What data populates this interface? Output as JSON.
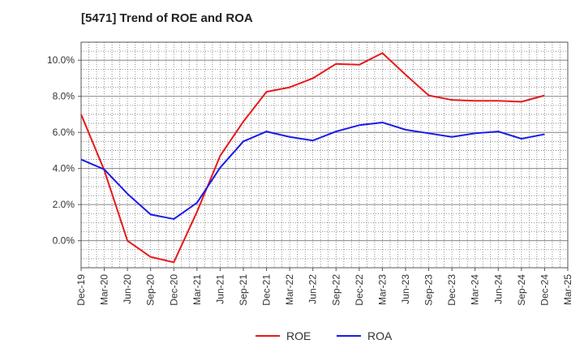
{
  "chart_data": {
    "type": "line",
    "title": "[5471]  Trend of ROE and ROA",
    "xlabel": "",
    "ylabel": "",
    "categories": [
      "Dec-19",
      "Mar-20",
      "Jun-20",
      "Sep-20",
      "Dec-20",
      "Mar-21",
      "Jun-21",
      "Sep-21",
      "Dec-21",
      "Mar-22",
      "Jun-22",
      "Sep-22",
      "Dec-22",
      "Mar-23",
      "Jun-23",
      "Sep-23",
      "Dec-23",
      "Mar-24",
      "Jun-24",
      "Sep-24",
      "Dec-24",
      "Mar-25"
    ],
    "yticks": [
      0,
      2,
      4,
      6,
      8,
      10
    ],
    "ytick_labels": [
      "0.0%",
      "2.0%",
      "4.0%",
      "6.0%",
      "8.0%",
      "10.0%"
    ],
    "ylim": [
      -1.5,
      11
    ],
    "grid": true,
    "legend_position": "bottom-center",
    "series": [
      {
        "name": "ROE",
        "color": "#e8191b",
        "values": [
          7.0,
          3.9,
          0.0,
          -0.9,
          -1.2,
          1.6,
          4.7,
          6.6,
          8.25,
          8.5,
          9.0,
          9.8,
          9.75,
          10.4,
          9.2,
          8.05,
          7.8,
          7.75,
          7.75,
          7.7,
          8.05,
          null
        ]
      },
      {
        "name": "ROA",
        "color": "#1a1aeb",
        "values": [
          4.5,
          3.95,
          2.6,
          1.45,
          1.2,
          2.1,
          4.05,
          5.5,
          6.05,
          5.75,
          5.55,
          6.05,
          6.4,
          6.55,
          6.15,
          5.95,
          5.75,
          5.95,
          6.05,
          5.65,
          5.9,
          null
        ]
      }
    ]
  }
}
